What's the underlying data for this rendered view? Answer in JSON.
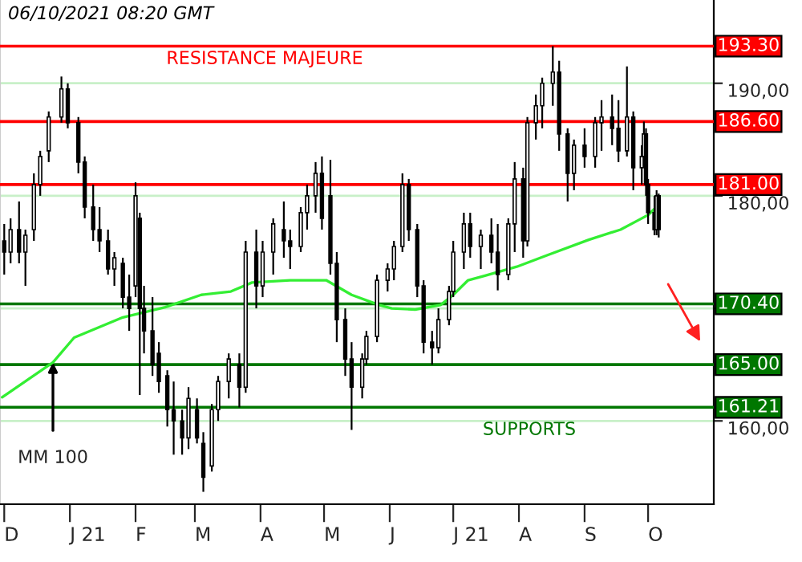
{
  "chart_data": {
    "type": "candlestick",
    "annotations": [
      "06/10/2021 08:20 GMT",
      "RESISTANCE MAJEURE",
      "SUPPORTS",
      {
        "text": "MM 100",
        "x": "2020-12-24",
        "y": 165.2
      }
    ],
    "series": [
      {
        "color": "#000000",
        "x": [
          "2020-12-01",
          "2020-12-04",
          "2020-12-08",
          "2020-12-11",
          "2020-12-15",
          "2020-12-18",
          "2020-12-22",
          "2020-12-28",
          "2020-12-31",
          "2021-01-05",
          "2021-01-08",
          "2021-01-12",
          "2021-01-15",
          "2021-01-19",
          "2021-01-22",
          "2021-01-26",
          "2021-01-29",
          "2021-02-01",
          "2021-02-03",
          "2021-02-05",
          "2021-02-09",
          "2021-02-12",
          "2021-02-16",
          "2021-02-19",
          "2021-02-23",
          "2021-02-26",
          "2021-03-02",
          "2021-03-05",
          "2021-03-09",
          "2021-03-12",
          "2021-03-17",
          "2021-03-22",
          "2021-03-25",
          "2021-03-30",
          "2021-04-02",
          "2021-04-07",
          "2021-04-12",
          "2021-04-15",
          "2021-04-20",
          "2021-04-23",
          "2021-04-27",
          "2021-04-30",
          "2021-05-04",
          "2021-05-07",
          "2021-05-11",
          "2021-05-14",
          "2021-05-19",
          "2021-05-21",
          "2021-05-26",
          "2021-05-31",
          "2021-06-03",
          "2021-06-07",
          "2021-06-10",
          "2021-06-14",
          "2021-06-17",
          "2021-06-21",
          "2021-06-24",
          "2021-06-29",
          "2021-07-01",
          "2021-07-06",
          "2021-07-09",
          "2021-07-14",
          "2021-07-19",
          "2021-07-22",
          "2021-07-27",
          "2021-07-30",
          "2021-08-03",
          "2021-08-05",
          "2021-08-09",
          "2021-08-12",
          "2021-08-17",
          "2021-08-20",
          "2021-08-24",
          "2021-08-27",
          "2021-09-01",
          "2021-09-06",
          "2021-09-09",
          "2021-09-14",
          "2021-09-17",
          "2021-09-21",
          "2021-09-24",
          "2021-09-28",
          "2021-09-29",
          "2021-09-30",
          "2021-10-01",
          "2021-10-04",
          "2021-10-05",
          "2021-10-06"
        ],
        "ohlc": [
          [
            176,
            177.5,
            173,
            175
          ],
          [
            175,
            178,
            174,
            177
          ],
          [
            177,
            179.5,
            174,
            175
          ],
          [
            175,
            177,
            172,
            176.5
          ],
          [
            177,
            182,
            176,
            181
          ],
          [
            181,
            184,
            180,
            183.5
          ],
          [
            184,
            187.5,
            183,
            187
          ],
          [
            187,
            190.6,
            186.5,
            189.5
          ],
          [
            189.5,
            190,
            186,
            186.5
          ],
          [
            186.5,
            187,
            182,
            183
          ],
          [
            183,
            183.5,
            178,
            179
          ],
          [
            179,
            181,
            176,
            177
          ],
          [
            177,
            179,
            175,
            176
          ],
          [
            176,
            177,
            173,
            173.5
          ],
          [
            173.5,
            175,
            172,
            174.5
          ],
          [
            174,
            174.5,
            170,
            171
          ],
          [
            171,
            173,
            168,
            170
          ],
          [
            172,
            181.2,
            171,
            180
          ],
          [
            178,
            178.5,
            162.3,
            170
          ],
          [
            170,
            172,
            166,
            168
          ],
          [
            168,
            171,
            164,
            165
          ],
          [
            166,
            167,
            162.5,
            163.5
          ],
          [
            164,
            164.5,
            159.5,
            161
          ],
          [
            161,
            163.5,
            157,
            160
          ],
          [
            160,
            161,
            157,
            158.5
          ],
          [
            158.5,
            163,
            157.5,
            162
          ],
          [
            161,
            162,
            158,
            158.5
          ],
          [
            158,
            159,
            153.7,
            155
          ],
          [
            156,
            161.5,
            155.5,
            161
          ],
          [
            161,
            164,
            160,
            163.5
          ],
          [
            163.5,
            166,
            162,
            165.5
          ],
          [
            165,
            166,
            161.2,
            163
          ],
          [
            163,
            176,
            162.5,
            175
          ],
          [
            175,
            177,
            170,
            172
          ],
          [
            172,
            176,
            171,
            175
          ],
          [
            175,
            178,
            173,
            177.5
          ],
          [
            177,
            179.5,
            174.5,
            176
          ],
          [
            176,
            177,
            173.5,
            175.5
          ],
          [
            175.5,
            179,
            175,
            178.5
          ],
          [
            178.5,
            181,
            177,
            180
          ],
          [
            180,
            183,
            178.5,
            182
          ],
          [
            182,
            183.5,
            177,
            178
          ],
          [
            180,
            183.2,
            173,
            174
          ],
          [
            174,
            175,
            167,
            169
          ],
          [
            169,
            170,
            164,
            165.5
          ],
          [
            165.5,
            167,
            159.2,
            163
          ],
          [
            163,
            166,
            162,
            165.5
          ],
          [
            165.5,
            168,
            165,
            167.5
          ],
          [
            167.5,
            173,
            167,
            172.5
          ],
          [
            172.5,
            174,
            171.5,
            173.5
          ],
          [
            173.5,
            176,
            172.5,
            175.5
          ],
          [
            175.5,
            182,
            175,
            181
          ],
          [
            181,
            181.5,
            176,
            177
          ],
          [
            177,
            177.5,
            171,
            172
          ],
          [
            172,
            172.5,
            166,
            167
          ],
          [
            167,
            168,
            165,
            166.5
          ],
          [
            166.5,
            170,
            166,
            169
          ],
          [
            169,
            172,
            168.5,
            171.5
          ],
          [
            171.5,
            176,
            171,
            175
          ],
          [
            175,
            178.5,
            173.5,
            177.5
          ],
          [
            177.5,
            178.5,
            174.5,
            175.5
          ],
          [
            175.5,
            177,
            173.5,
            176.5
          ],
          [
            176.5,
            178,
            174,
            175
          ],
          [
            175,
            177.5,
            171.6,
            173
          ],
          [
            173,
            178,
            172.5,
            177.5
          ],
          [
            177.5,
            183,
            175,
            181.5
          ],
          [
            181.5,
            182.5,
            174.5,
            176
          ],
          [
            176,
            187,
            175.5,
            186.5
          ],
          [
            186.5,
            189,
            185,
            188
          ],
          [
            188,
            190.5,
            186,
            190
          ],
          [
            190,
            193.3,
            188,
            191
          ],
          [
            191,
            192,
            184,
            185.5
          ],
          [
            185.5,
            186,
            179.5,
            182
          ],
          [
            182,
            185,
            180.5,
            184.5
          ],
          [
            184.5,
            186,
            182.5,
            183.5
          ],
          [
            183.5,
            187,
            182.5,
            186.5
          ],
          [
            186.5,
            188.5,
            184,
            187
          ],
          [
            187,
            189,
            184.5,
            186
          ],
          [
            186,
            188.5,
            183,
            184
          ],
          [
            184,
            191.5,
            183.5,
            187
          ],
          [
            187,
            187.5,
            180.5,
            182.5
          ],
          [
            182.5,
            184.5,
            181,
            183.5
          ],
          [
            183.5,
            186.6,
            182.5,
            185.5
          ],
          [
            185.5,
            186,
            180,
            181
          ],
          [
            181,
            181.5,
            177.5,
            178.5
          ],
          [
            178.5,
            180,
            176.5,
            177
          ],
          [
            177,
            180.5,
            176.5,
            180
          ],
          [
            180,
            180.2,
            176.3,
            177
          ]
        ]
      },
      {
        "type": "line",
        "color": "#33ee33",
        "x": [
          "2020-11-30",
          "2020-12-24",
          "2021-01-03",
          "2021-01-26",
          "2021-02-15",
          "2021-03-04",
          "2021-03-18",
          "2021-03-28",
          "2021-04-15",
          "2021-05-02",
          "2021-05-14",
          "2021-05-27",
          "2021-06-02",
          "2021-06-13",
          "2021-06-25",
          "2021-07-01",
          "2021-07-08",
          "2021-07-16",
          "2021-07-31",
          "2021-08-14",
          "2021-09-03",
          "2021-09-18",
          "2021-09-27",
          "2021-10-01",
          "2021-10-06"
        ],
        "values": [
          162.1,
          165.2,
          167.4,
          169.2,
          170.1,
          171.2,
          171.5,
          172.3,
          172.5,
          172.5,
          171.2,
          170.3,
          170.0,
          169.9,
          170.3,
          171.2,
          172.5,
          172.9,
          173.7,
          174.7,
          176.1,
          177.0,
          177.9,
          178.3,
          179.2
        ]
      }
    ],
    "xlim": [
      "2020-11-29",
      "2021-11-01"
    ],
    "xticks": [
      {
        "value": "2020-12-01",
        "label": "D"
      },
      {
        "value": "2021-01-01",
        "label": "J 21"
      },
      {
        "value": "2021-02-01",
        "label": "F"
      },
      {
        "value": "2021-03-01",
        "label": "M"
      },
      {
        "value": "2021-04-01",
        "label": "A"
      },
      {
        "value": "2021-05-01",
        "label": "M"
      },
      {
        "value": "2021-06-01",
        "label": "J"
      },
      {
        "value": "2021-07-01",
        "label": "J 21"
      },
      {
        "value": "2021-08-01",
        "label": "A"
      },
      {
        "value": "2021-09-01",
        "label": "S"
      },
      {
        "value": "2021-10-01",
        "label": "O"
      }
    ],
    "ylim": [
      152.6,
      197.4
    ],
    "yticks": [
      {
        "value": 160,
        "label": "160,00"
      },
      {
        "value": 170,
        "label": null
      },
      {
        "value": 180,
        "label": "180,00"
      },
      {
        "value": 190,
        "label": "190,00"
      }
    ],
    "ref_lines": [
      {
        "axis": "y",
        "value": 193.3,
        "label": "193.30",
        "color": "#ff0000"
      },
      {
        "axis": "y",
        "value": 186.6,
        "label": "186.60",
        "color": "#ff0000"
      },
      {
        "axis": "y",
        "value": 181.0,
        "label": "181.00",
        "color": "#ff0000"
      },
      {
        "axis": "y",
        "value": 170.4,
        "label": "170.40",
        "color": "#007700"
      },
      {
        "axis": "y",
        "value": 165.0,
        "label": "165.00",
        "color": "#007700"
      },
      {
        "axis": "y",
        "value": 161.21,
        "label": "161.21",
        "color": "#007700"
      }
    ],
    "grid": "y",
    "legend": false
  }
}
